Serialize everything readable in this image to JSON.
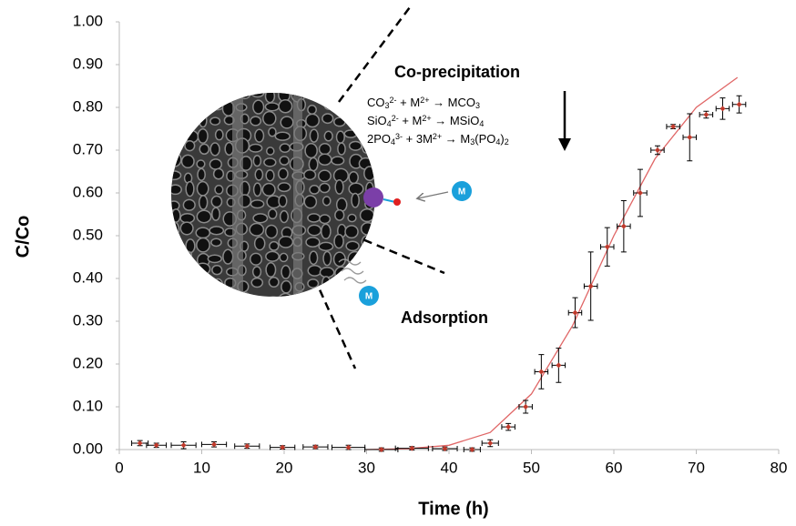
{
  "chart_data": {
    "type": "scatter",
    "x_label": "Time (h)",
    "y_label": "C/Co",
    "xlim": [
      0,
      80
    ],
    "ylim": [
      0,
      1
    ],
    "xticks": [
      0,
      10,
      20,
      30,
      40,
      50,
      60,
      70,
      80
    ],
    "yticks": [
      {
        "value": 0,
        "label": "0.00"
      },
      {
        "value": 0.1,
        "label": "0.10"
      },
      {
        "value": 0.2,
        "label": "0.20"
      },
      {
        "value": 0.3,
        "label": "0.30"
      },
      {
        "value": 0.4,
        "label": "0.40"
      },
      {
        "value": 0.5,
        "label": "0.50"
      },
      {
        "value": 0.6,
        "label": "0.60"
      },
      {
        "value": 0.7,
        "label": "0.70"
      },
      {
        "value": 0.8,
        "label": "0.80"
      },
      {
        "value": 0.9,
        "label": "0.90"
      },
      {
        "value": 1,
        "label": "1.00"
      }
    ],
    "grid": false,
    "points": {
      "color": "#c0392b",
      "x": [
        2.5,
        4.5,
        7.8,
        11.5,
        15.5,
        19.8,
        23.8,
        27.8,
        31.8,
        35.5,
        39.5,
        42.8,
        45,
        47.2,
        49.3,
        51.2,
        53.3,
        55.3,
        57.2,
        59.2,
        61.2,
        63.2,
        65.3,
        67.2,
        69.2,
        71.2,
        73.2,
        75.2
      ],
      "values": [
        0.015,
        0.01,
        0.01,
        0.012,
        0.008,
        0.005,
        0.006,
        0.005,
        0.0,
        0.003,
        0.002,
        0.0,
        0.015,
        0.053,
        0.1,
        0.182,
        0.197,
        0.32,
        0.382,
        0.474,
        0.522,
        0.6,
        0.7,
        0.755,
        0.73,
        0.783,
        0.797,
        0.807
      ],
      "yerr": [
        0.006,
        0.005,
        0.008,
        0.006,
        0.005,
        0.004,
        0.004,
        0.005,
        0.004,
        0.004,
        0.004,
        0.004,
        0.008,
        0.008,
        0.015,
        0.04,
        0.04,
        0.035,
        0.08,
        0.045,
        0.06,
        0.055,
        0.01,
        0.005,
        0.055,
        0.008,
        0.025,
        0.02
      ],
      "xerr": [
        1,
        1.2,
        1.5,
        1.5,
        1.5,
        1.5,
        1.5,
        2,
        2,
        2,
        1.5,
        1,
        1,
        0.8,
        0.8,
        0.8,
        0.8,
        0.8,
        0.8,
        0.8,
        0.8,
        0.8,
        0.8,
        0.8,
        0.8,
        0.8,
        0.8,
        0.8
      ]
    },
    "fit": {
      "type": "line",
      "color": "#e06666",
      "x": [
        30,
        35,
        40,
        45,
        50,
        55,
        60,
        65,
        70,
        75
      ],
      "values": [
        0.0,
        0.002,
        0.01,
        0.04,
        0.13,
        0.29,
        0.5,
        0.68,
        0.8,
        0.87
      ]
    },
    "inset": {
      "heading": "Co-precipitation",
      "equations": [
        [
          "CO",
          {
            "sub": "3"
          },
          {
            "sup": "2-"
          },
          " + M",
          {
            "sup": "2+"
          },
          " → MCO",
          {
            "sub": "3"
          }
        ],
        [
          "SiO",
          {
            "sub": "4"
          },
          {
            "sup": "2-"
          },
          " + M",
          {
            "sup": "2+"
          },
          " → MSiO",
          {
            "sub": "4"
          }
        ],
        [
          "2PO",
          {
            "sub": "4"
          },
          {
            "sup": "3-"
          },
          " + 3M",
          {
            "sup": "2+"
          },
          " → M",
          {
            "sub": "3"
          },
          "(PO",
          {
            "sub": "4"
          },
          ")",
          {
            "sub": "2"
          }
        ]
      ],
      "ion_label": "M",
      "mechanism": "Adsorption"
    }
  }
}
